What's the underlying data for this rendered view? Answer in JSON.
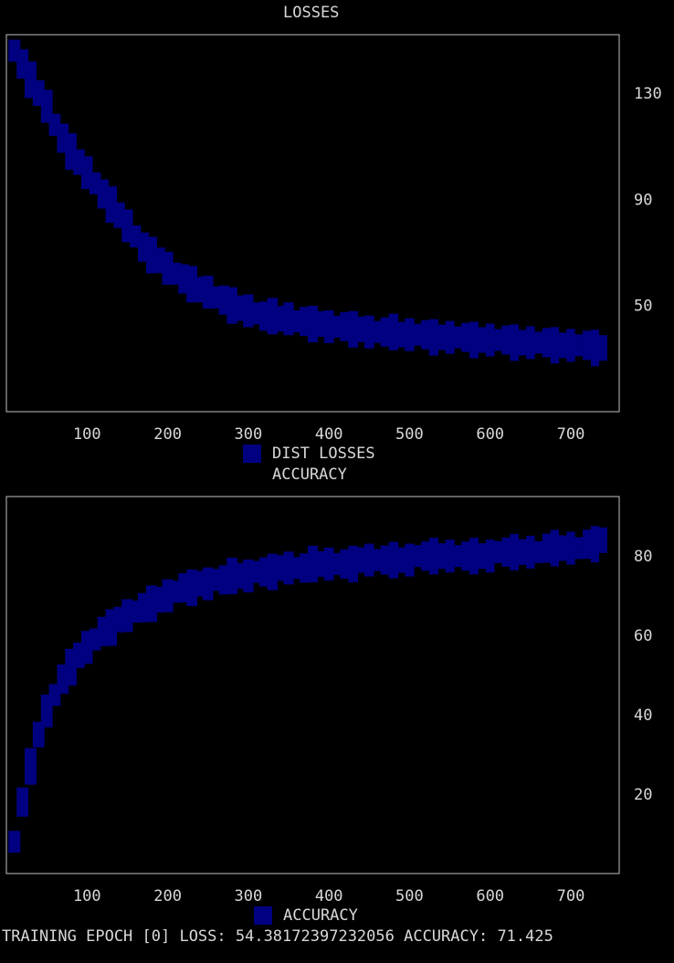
{
  "chart_data": [
    {
      "type": "scatter",
      "title": "LOSSES",
      "legend": [
        "DIST LOSSES"
      ],
      "legend_placement": "bottom",
      "series": [
        {
          "name": "DIST LOSSES",
          "color": "#000080",
          "x": [
            10,
            20,
            30,
            40,
            50,
            60,
            70,
            80,
            90,
            100,
            110,
            120,
            130,
            140,
            150,
            160,
            170,
            180,
            190,
            200,
            210,
            220,
            230,
            240,
            250,
            260,
            270,
            280,
            290,
            300,
            310,
            320,
            330,
            340,
            350,
            360,
            370,
            380,
            390,
            400,
            410,
            420,
            430,
            440,
            450,
            460,
            470,
            480,
            490,
            500,
            510,
            520,
            530,
            540,
            550,
            560,
            570,
            580,
            590,
            600,
            610,
            620,
            630,
            640,
            650,
            660,
            670,
            680,
            690,
            700,
            710,
            720,
            730,
            740
          ],
          "y": [
            146,
            141,
            135,
            130,
            125,
            118,
            113,
            108,
            104,
            100,
            96,
            92,
            88,
            84,
            80,
            76,
            72,
            69,
            67,
            64,
            62,
            60,
            58,
            56,
            55,
            53,
            52,
            50,
            49,
            48,
            47,
            46,
            46,
            45,
            45,
            44,
            44,
            43,
            43,
            42,
            42,
            42,
            41,
            41,
            40,
            40,
            40,
            40,
            39,
            39,
            39,
            39,
            38,
            38,
            38,
            38,
            38,
            37,
            37,
            37,
            37,
            37,
            36,
            36,
            36,
            36,
            36,
            35,
            35,
            35,
            35,
            35,
            34,
            34
          ]
        }
      ],
      "xticks": [
        100,
        200,
        300,
        400,
        500,
        600,
        700
      ],
      "yticks": [
        130,
        90,
        50
      ],
      "xlim": [
        0,
        760
      ],
      "ylim": [
        10,
        152
      ],
      "grid": false
    },
    {
      "type": "scatter",
      "title": "ACCURACY",
      "legend": [
        "ACCURACY"
      ],
      "legend_placement": "bottom",
      "series": [
        {
          "name": "ACCURACY",
          "color": "#000080",
          "x": [
            10,
            20,
            30,
            40,
            50,
            60,
            70,
            80,
            90,
            100,
            110,
            120,
            130,
            140,
            150,
            160,
            170,
            180,
            190,
            200,
            210,
            220,
            230,
            240,
            250,
            260,
            270,
            280,
            290,
            300,
            310,
            320,
            330,
            340,
            350,
            360,
            370,
            380,
            390,
            400,
            410,
            420,
            430,
            440,
            450,
            460,
            470,
            480,
            490,
            500,
            510,
            520,
            530,
            540,
            550,
            560,
            570,
            580,
            590,
            600,
            610,
            620,
            630,
            640,
            650,
            660,
            670,
            680,
            690,
            700,
            710,
            720,
            730,
            740
          ],
          "y": [
            8,
            18,
            27,
            35,
            41,
            45,
            49,
            52,
            55,
            57,
            59,
            61,
            62,
            64,
            65,
            66,
            67,
            68,
            69,
            70,
            71,
            72,
            72,
            73,
            73,
            74,
            74,
            75,
            75,
            75,
            76,
            76,
            76,
            77,
            77,
            77,
            77,
            78,
            78,
            78,
            78,
            78,
            78,
            79,
            79,
            79,
            79,
            79,
            79,
            79,
            80,
            80,
            80,
            80,
            80,
            80,
            80,
            80,
            80,
            80,
            81,
            81,
            81,
            81,
            81,
            81,
            82,
            82,
            82,
            82,
            82,
            83,
            83,
            84
          ]
        }
      ],
      "xticks": [
        100,
        200,
        300,
        400,
        500,
        600,
        700
      ],
      "yticks": [
        80,
        60,
        40,
        20
      ],
      "xlim": [
        0,
        760
      ],
      "ylim": [
        0,
        95
      ],
      "grid": false
    }
  ],
  "status": {
    "text": "TRAINING EPOCH [0] LOSS: 54.38172397232056 ACCURACY: 71.425"
  }
}
